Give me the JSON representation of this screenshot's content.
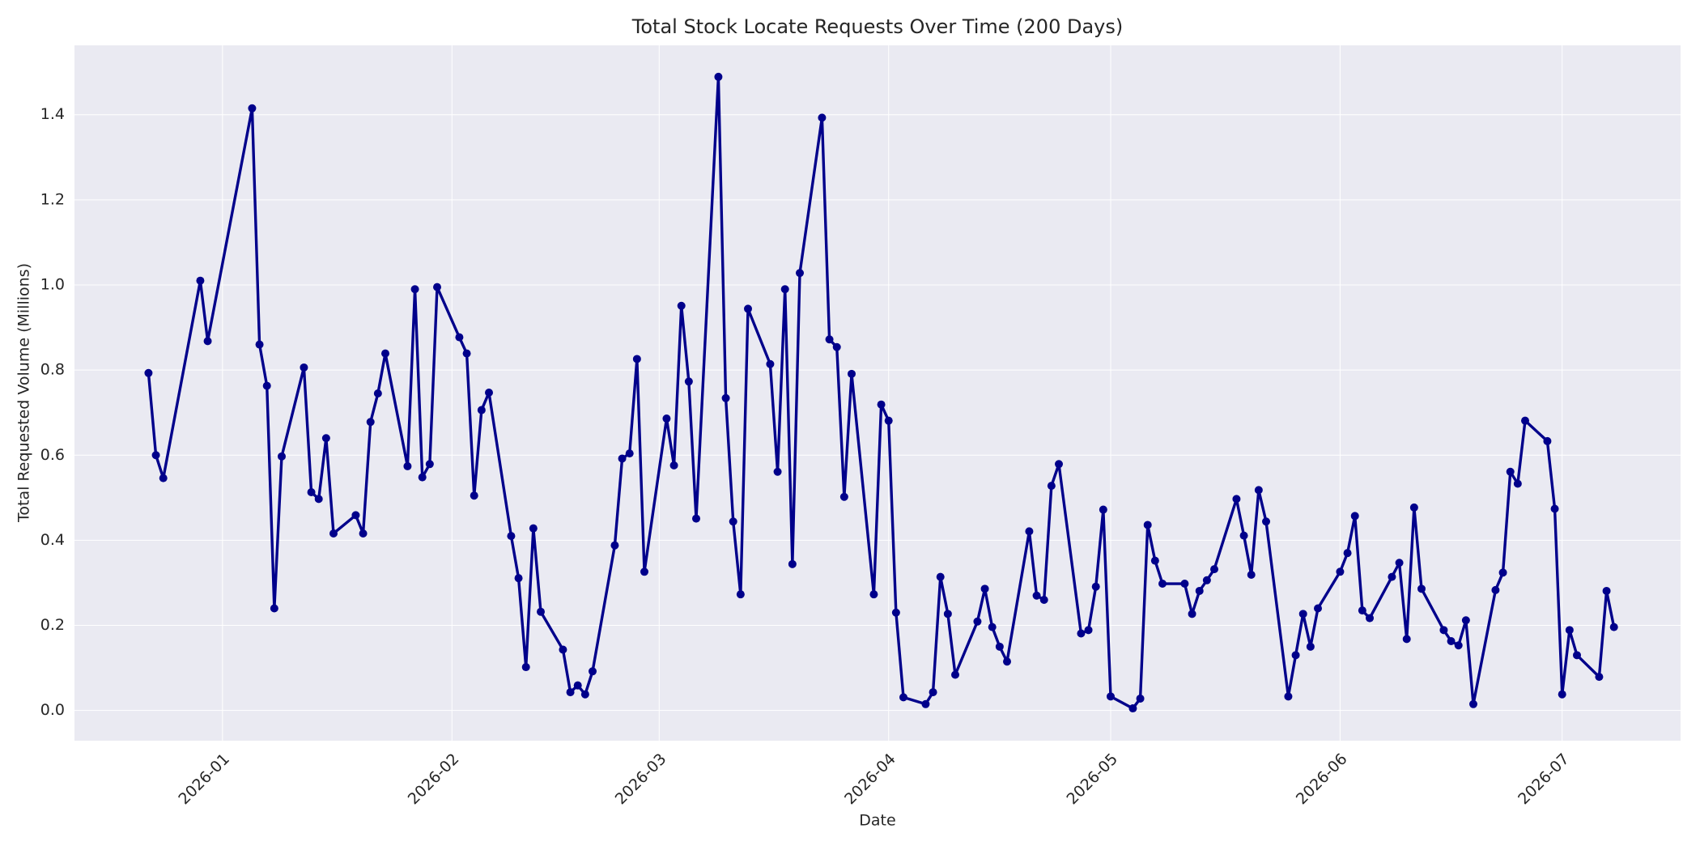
{
  "chart_data": {
    "type": "line",
    "title": "Total Stock Locate Requests Over Time (200 Days)",
    "xlabel": "Date",
    "ylabel": "Total Requested Volume (Millions)",
    "x": [
      "2025-12-22",
      "2025-12-23",
      "2025-12-24",
      "2025-12-29",
      "2025-12-30",
      "2026-01-05",
      "2026-01-06",
      "2026-01-07",
      "2026-01-08",
      "2026-01-09",
      "2026-01-12",
      "2026-01-13",
      "2026-01-14",
      "2026-01-15",
      "2026-01-16",
      "2026-01-19",
      "2026-01-20",
      "2026-01-21",
      "2026-01-22",
      "2026-01-23",
      "2026-01-26",
      "2026-01-27",
      "2026-01-28",
      "2026-01-29",
      "2026-01-30",
      "2026-02-02",
      "2026-02-03",
      "2026-02-04",
      "2026-02-05",
      "2026-02-06",
      "2026-02-09",
      "2026-02-10",
      "2026-02-11",
      "2026-02-12",
      "2026-02-13",
      "2026-02-16",
      "2026-02-17",
      "2026-02-18",
      "2026-02-19",
      "2026-02-20",
      "2026-02-23",
      "2026-02-24",
      "2026-02-25",
      "2026-02-26",
      "2026-02-27",
      "2026-03-02",
      "2026-03-03",
      "2026-03-04",
      "2026-03-05",
      "2026-03-06",
      "2026-03-09",
      "2026-03-10",
      "2026-03-11",
      "2026-03-12",
      "2026-03-13",
      "2026-03-16",
      "2026-03-17",
      "2026-03-18",
      "2026-03-19",
      "2026-03-20",
      "2026-03-23",
      "2026-03-24",
      "2026-03-25",
      "2026-03-26",
      "2026-03-27",
      "2026-03-30",
      "2026-03-31",
      "2026-04-01",
      "2026-04-02",
      "2026-04-03",
      "2026-04-06",
      "2026-04-07",
      "2026-04-08",
      "2026-04-09",
      "2026-04-10",
      "2026-04-13",
      "2026-04-14",
      "2026-04-15",
      "2026-04-16",
      "2026-04-17",
      "2026-04-20",
      "2026-04-21",
      "2026-04-22",
      "2026-04-23",
      "2026-04-24",
      "2026-04-27",
      "2026-04-28",
      "2026-04-29",
      "2026-04-30",
      "2026-05-01",
      "2026-05-04",
      "2026-05-05",
      "2026-05-06",
      "2026-05-07",
      "2026-05-08",
      "2026-05-11",
      "2026-05-12",
      "2026-05-13",
      "2026-05-14",
      "2026-05-15",
      "2026-05-18",
      "2026-05-19",
      "2026-05-20",
      "2026-05-21",
      "2026-05-22",
      "2026-05-25",
      "2026-05-26",
      "2026-05-27",
      "2026-05-28",
      "2026-05-29",
      "2026-06-01",
      "2026-06-02",
      "2026-06-03",
      "2026-06-04",
      "2026-06-05",
      "2026-06-08",
      "2026-06-09",
      "2026-06-10",
      "2026-06-11",
      "2026-06-12",
      "2026-06-15",
      "2026-06-16",
      "2026-06-17",
      "2026-06-18",
      "2026-06-19",
      "2026-06-22",
      "2026-06-23",
      "2026-06-24",
      "2026-06-25",
      "2026-06-26",
      "2026-06-29",
      "2026-06-30",
      "2026-07-01",
      "2026-07-02",
      "2026-07-03",
      "2026-07-06",
      "2026-07-07",
      "2026-07-08"
    ],
    "series": [
      {
        "color": "#00008b",
        "values": [
          0.793,
          0.6,
          0.546,
          1.01,
          0.868,
          1.415,
          0.86,
          0.763,
          0.24,
          0.597,
          0.806,
          0.513,
          0.497,
          0.64,
          0.416,
          0.459,
          0.416,
          0.678,
          0.745,
          0.839,
          0.574,
          0.99,
          0.548,
          0.579,
          0.995,
          0.877,
          0.839,
          0.505,
          0.706,
          0.747,
          0.41,
          0.311,
          0.102,
          0.428,
          0.232,
          0.143,
          0.043,
          0.059,
          0.038,
          0.092,
          0.388,
          0.592,
          0.604,
          0.826,
          0.326,
          0.686,
          0.576,
          0.951,
          0.773,
          0.451,
          1.489,
          0.734,
          0.444,
          0.273,
          0.944,
          0.814,
          0.561,
          0.99,
          0.344,
          1.028,
          1.393,
          0.872,
          0.854,
          0.502,
          0.791,
          0.273,
          0.719,
          0.681,
          0.23,
          0.031,
          0.015,
          0.043,
          0.314,
          0.227,
          0.084,
          0.209,
          0.286,
          0.196,
          0.15,
          0.115,
          0.421,
          0.27,
          0.26,
          0.528,
          0.579,
          0.181,
          0.189,
          0.291,
          0.472,
          0.033,
          0.005,
          0.028,
          0.436,
          0.352,
          0.298,
          0.298,
          0.227,
          0.281,
          0.306,
          0.332,
          0.497,
          0.411,
          0.319,
          0.518,
          0.444,
          0.033,
          0.13,
          0.227,
          0.15,
          0.24,
          0.326,
          0.37,
          0.457,
          0.235,
          0.217,
          0.314,
          0.347,
          0.168,
          0.477,
          0.286,
          0.189,
          0.163,
          0.153,
          0.212,
          0.015,
          0.283,
          0.324,
          0.561,
          0.533,
          0.681,
          0.633,
          0.474,
          0.038,
          0.189,
          0.13,
          0.079,
          0.281,
          0.196
        ]
      }
    ],
    "xlim": [
      "2025-12-12",
      "2026-07-17"
    ],
    "xticks": [
      {
        "value": "2026-01-01",
        "label": "2026-01"
      },
      {
        "value": "2026-02-01",
        "label": "2026-02"
      },
      {
        "value": "2026-03-01",
        "label": "2026-03"
      },
      {
        "value": "2026-04-01",
        "label": "2026-04"
      },
      {
        "value": "2026-05-01",
        "label": "2026-05"
      },
      {
        "value": "2026-06-01",
        "label": "2026-06"
      },
      {
        "value": "2026-07-01",
        "label": "2026-07"
      }
    ],
    "ylim": [
      -0.071,
      1.563
    ],
    "yticks": [
      {
        "value": 0,
        "label": "0.0"
      },
      {
        "value": 0.2,
        "label": "0.2"
      },
      {
        "value": 0.4,
        "label": "0.4"
      },
      {
        "value": 0.6,
        "label": "0.6"
      },
      {
        "value": 0.8,
        "label": "0.8"
      },
      {
        "value": 1,
        "label": "1.0"
      },
      {
        "value": 1.2,
        "label": "1.2"
      },
      {
        "value": 1.4,
        "label": "1.4"
      }
    ],
    "grid": true
  }
}
